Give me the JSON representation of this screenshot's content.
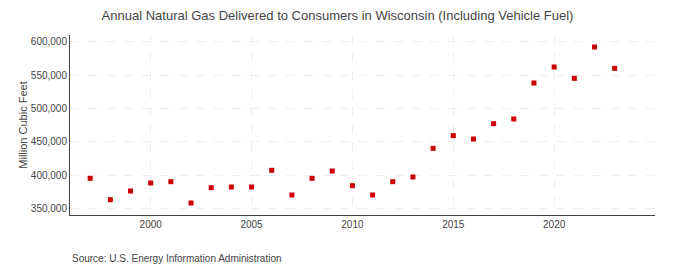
{
  "chart_data": {
    "type": "scatter",
    "title": "Annual Natural Gas Delivered to Consumers in Wisconsin (Including Vehicle Fuel)",
    "ylabel": "Million Cubic Feet",
    "annotations": [
      "Source: U.S. Energy Information Administration"
    ],
    "x": [
      1997,
      1998,
      1999,
      2000,
      2001,
      2002,
      2003,
      2004,
      2005,
      2006,
      2007,
      2008,
      2009,
      2010,
      2011,
      2012,
      2013,
      2014,
      2015,
      2016,
      2017,
      2018,
      2019,
      2020,
      2021,
      2022,
      2023
    ],
    "values": [
      395000,
      363000,
      376000,
      388000,
      390000,
      358000,
      381000,
      382000,
      382000,
      407000,
      370000,
      395000,
      406000,
      384000,
      370000,
      390000,
      397000,
      440000,
      459000,
      454000,
      477000,
      484000,
      538000,
      562000,
      545000,
      592000,
      560000
    ],
    "color": "#cc0000",
    "marker": "square",
    "xlim": [
      1996,
      2025
    ],
    "xticks": [
      2000,
      2005,
      2010,
      2015,
      2020
    ],
    "ylim": [
      340000,
      610000
    ],
    "yticks": [
      {
        "value": 350000,
        "label": "350,000"
      },
      {
        "value": 400000,
        "label": "400,000"
      },
      {
        "value": 450000,
        "label": "450,000"
      },
      {
        "value": 500000,
        "label": "500,000"
      },
      {
        "value": 550000,
        "label": "550,000"
      },
      {
        "value": 600000,
        "label": "600,000"
      }
    ],
    "grid": true
  }
}
